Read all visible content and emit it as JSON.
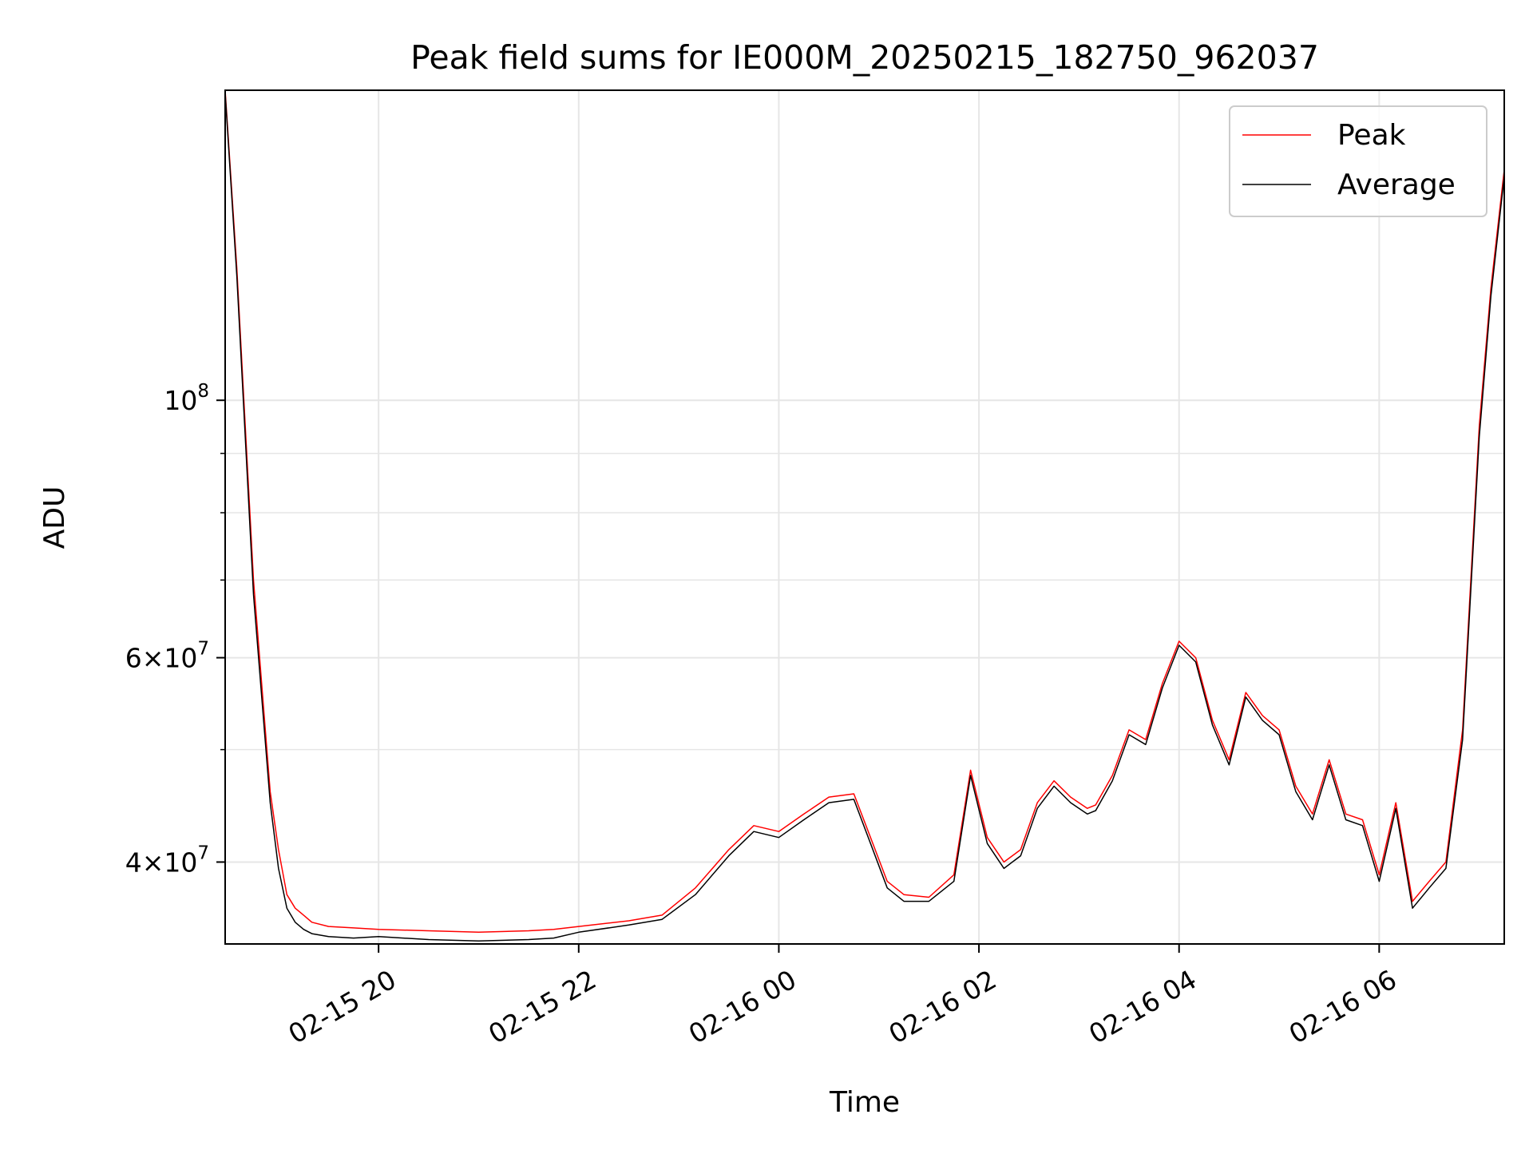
{
  "chart_data": {
    "type": "line",
    "title": "Peak field sums for IE000M_20250215_182750_962037",
    "xlabel": "Time",
    "ylabel": "ADU",
    "yscale": "log",
    "ylim": [
      34000000,
      185000000
    ],
    "xlim": [
      "2025-02-15 18:28",
      "2025-02-16 07:15"
    ],
    "x_ticks": [
      {
        "value": "2025-02-15 20:00",
        "label": "02-15 20"
      },
      {
        "value": "2025-02-15 22:00",
        "label": "02-15 22"
      },
      {
        "value": "2025-02-16 00:00",
        "label": "02-16 00"
      },
      {
        "value": "2025-02-16 02:00",
        "label": "02-16 02"
      },
      {
        "value": "2025-02-16 04:00",
        "label": "02-16 04"
      },
      {
        "value": "2025-02-16 06:00",
        "label": "02-16 06"
      }
    ],
    "y_ticks": [
      {
        "value": 40000000,
        "mantissa": "4",
        "times": "×",
        "base": "10",
        "exp": "7"
      },
      {
        "value": 60000000,
        "mantissa": "6",
        "times": "×",
        "base": "10",
        "exp": "7"
      },
      {
        "value": 100000000,
        "mantissa": "",
        "times": "",
        "base": "10",
        "exp": "8"
      }
    ],
    "y_minor_ticks": [
      50000000,
      70000000,
      80000000,
      90000000
    ],
    "grid": true,
    "legend_position": "top-right",
    "series": [
      {
        "name": "Peak",
        "color": "#ff0000",
        "x": [
          "2025-02-15 18:28",
          "2025-02-15 18:35",
          "2025-02-15 18:45",
          "2025-02-15 18:55",
          "2025-02-15 19:00",
          "2025-02-15 19:05",
          "2025-02-15 19:10",
          "2025-02-15 19:15",
          "2025-02-15 19:20",
          "2025-02-15 19:30",
          "2025-02-15 19:45",
          "2025-02-15 20:00",
          "2025-02-15 20:30",
          "2025-02-15 21:00",
          "2025-02-15 21:30",
          "2025-02-15 21:45",
          "2025-02-15 22:00",
          "2025-02-15 22:30",
          "2025-02-15 22:50",
          "2025-02-15 23:10",
          "2025-02-15 23:30",
          "2025-02-15 23:45",
          "2025-02-16 00:00",
          "2025-02-16 00:15",
          "2025-02-16 00:30",
          "2025-02-16 00:45",
          "2025-02-16 00:55",
          "2025-02-16 01:05",
          "2025-02-16 01:15",
          "2025-02-16 01:30",
          "2025-02-16 01:45",
          "2025-02-16 01:55",
          "2025-02-16 02:05",
          "2025-02-16 02:15",
          "2025-02-16 02:25",
          "2025-02-16 02:35",
          "2025-02-16 02:45",
          "2025-02-16 02:55",
          "2025-02-16 03:05",
          "2025-02-16 03:10",
          "2025-02-16 03:20",
          "2025-02-16 03:30",
          "2025-02-16 03:40",
          "2025-02-16 03:50",
          "2025-02-16 04:00",
          "2025-02-16 04:10",
          "2025-02-16 04:20",
          "2025-02-16 04:30",
          "2025-02-16 04:40",
          "2025-02-16 04:50",
          "2025-02-16 05:00",
          "2025-02-16 05:10",
          "2025-02-16 05:20",
          "2025-02-16 05:30",
          "2025-02-16 05:40",
          "2025-02-16 05:50",
          "2025-02-16 06:00",
          "2025-02-16 06:10",
          "2025-02-16 06:20",
          "2025-02-16 06:30",
          "2025-02-16 06:40",
          "2025-02-16 06:50",
          "2025-02-16 07:00",
          "2025-02-16 07:07",
          "2025-02-16 07:15"
        ],
        "values": [
          185000000,
          130000000,
          70000000,
          46000000,
          41000000,
          37500000,
          36500000,
          36000000,
          35500000,
          35200000,
          35100000,
          35000000,
          34900000,
          34800000,
          34900000,
          35000000,
          35200000,
          35600000,
          36000000,
          38000000,
          41000000,
          43000000,
          42500000,
          44000000,
          45500000,
          45800000,
          42000000,
          38500000,
          37500000,
          37300000,
          39000000,
          48000000,
          42000000,
          40000000,
          41000000,
          45000000,
          47000000,
          45500000,
          44500000,
          44800000,
          47500000,
          52000000,
          51000000,
          57000000,
          62000000,
          60000000,
          53000000,
          49000000,
          56000000,
          53500000,
          52000000,
          46500000,
          44000000,
          49000000,
          44000000,
          43500000,
          39000000,
          45000000,
          37000000,
          38500000,
          40000000,
          52000000,
          95000000,
          125000000,
          158000000
        ]
      },
      {
        "name": "Average",
        "color": "#000000",
        "x": [
          "2025-02-15 18:28",
          "2025-02-15 18:35",
          "2025-02-15 18:45",
          "2025-02-15 18:55",
          "2025-02-15 19:00",
          "2025-02-15 19:05",
          "2025-02-15 19:10",
          "2025-02-15 19:15",
          "2025-02-15 19:20",
          "2025-02-15 19:30",
          "2025-02-15 19:45",
          "2025-02-15 20:00",
          "2025-02-15 20:30",
          "2025-02-15 21:00",
          "2025-02-15 21:30",
          "2025-02-15 21:45",
          "2025-02-15 22:00",
          "2025-02-15 22:30",
          "2025-02-15 22:50",
          "2025-02-15 23:10",
          "2025-02-15 23:30",
          "2025-02-15 23:45",
          "2025-02-16 00:00",
          "2025-02-16 00:15",
          "2025-02-16 00:30",
          "2025-02-16 00:45",
          "2025-02-16 00:55",
          "2025-02-16 01:05",
          "2025-02-16 01:15",
          "2025-02-16 01:30",
          "2025-02-16 01:45",
          "2025-02-16 01:55",
          "2025-02-16 02:05",
          "2025-02-16 02:15",
          "2025-02-16 02:25",
          "2025-02-16 02:35",
          "2025-02-16 02:45",
          "2025-02-16 02:55",
          "2025-02-16 03:05",
          "2025-02-16 03:10",
          "2025-02-16 03:20",
          "2025-02-16 03:30",
          "2025-02-16 03:40",
          "2025-02-16 03:50",
          "2025-02-16 04:00",
          "2025-02-16 04:10",
          "2025-02-16 04:20",
          "2025-02-16 04:30",
          "2025-02-16 04:40",
          "2025-02-16 04:50",
          "2025-02-16 05:00",
          "2025-02-16 05:10",
          "2025-02-16 05:20",
          "2025-02-16 05:30",
          "2025-02-16 05:40",
          "2025-02-16 05:50",
          "2025-02-16 06:00",
          "2025-02-16 06:10",
          "2025-02-16 06:20",
          "2025-02-16 06:30",
          "2025-02-16 06:40",
          "2025-02-16 06:50",
          "2025-02-16 07:00",
          "2025-02-16 07:07",
          "2025-02-16 07:15"
        ],
        "values": [
          184000000,
          128000000,
          68000000,
          45000000,
          39500000,
          36500000,
          35500000,
          35000000,
          34700000,
          34500000,
          34400000,
          34500000,
          34300000,
          34200000,
          34300000,
          34400000,
          34800000,
          35300000,
          35700000,
          37500000,
          40500000,
          42500000,
          42000000,
          43500000,
          45000000,
          45300000,
          41500000,
          38000000,
          37000000,
          37000000,
          38500000,
          47500000,
          41500000,
          39500000,
          40500000,
          44500000,
          46500000,
          45000000,
          44000000,
          44300000,
          47000000,
          51500000,
          50500000,
          56500000,
          61500000,
          59500000,
          52500000,
          48500000,
          55500000,
          53000000,
          51500000,
          46000000,
          43500000,
          48500000,
          43500000,
          43000000,
          38500000,
          44500000,
          36500000,
          38000000,
          39500000,
          51000000,
          93000000,
          123000000,
          156000000
        ]
      }
    ]
  }
}
